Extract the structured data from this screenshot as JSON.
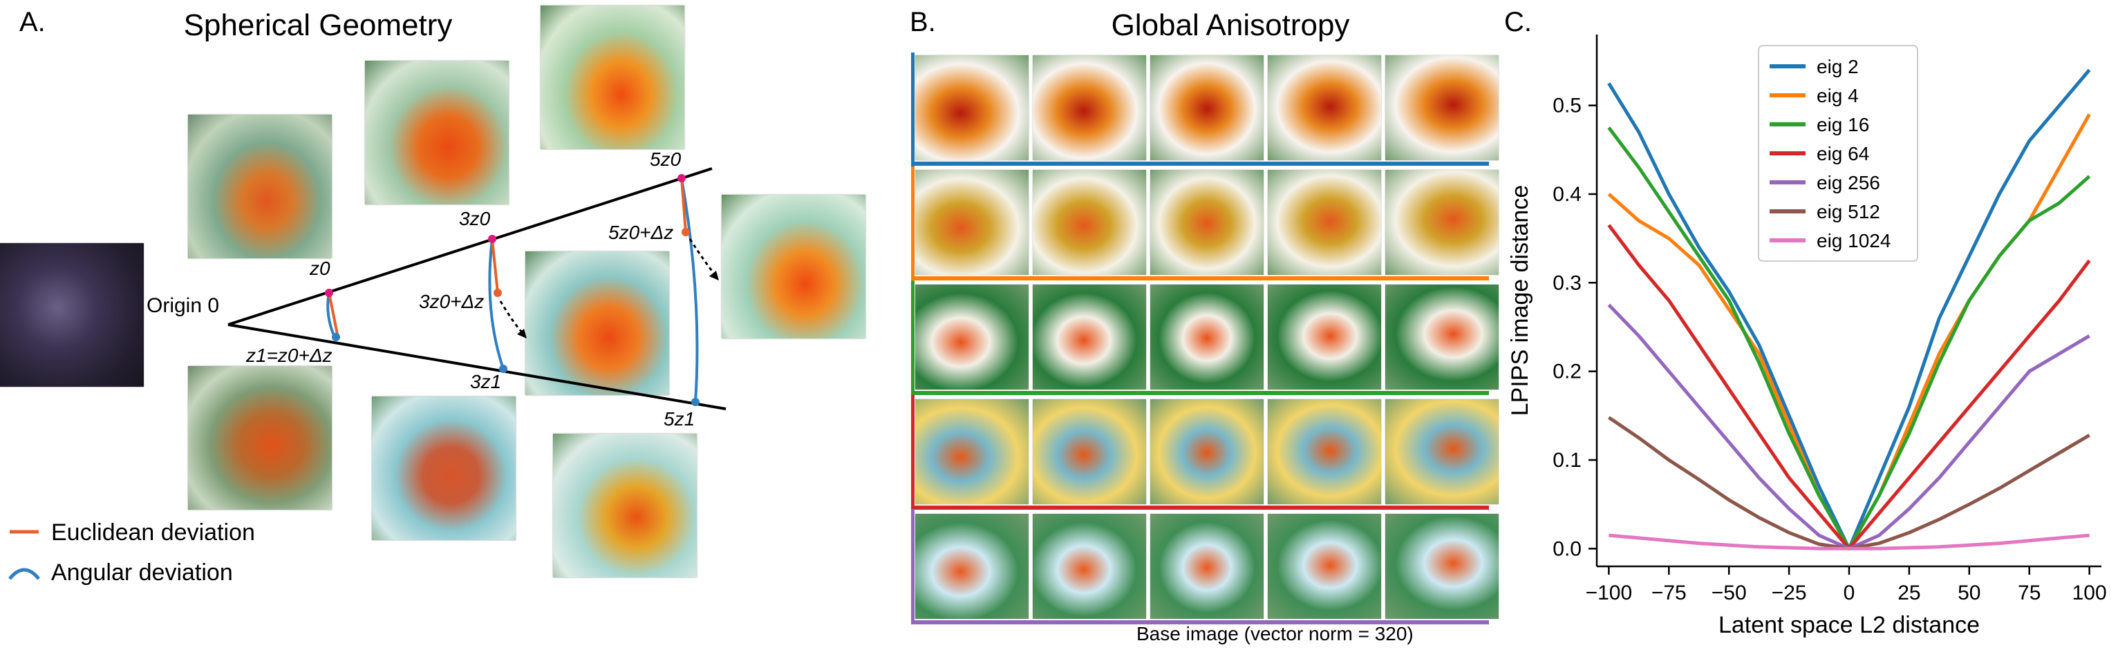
{
  "panel_a": {
    "letter": "A.",
    "title": "Spherical Geometry",
    "labels": {
      "origin": "Origin 0",
      "z0": "z0",
      "z1": "z1=z0+Δz",
      "three_z0": "3z0",
      "three_z0_dz": "3z0+Δz",
      "three_z1": "3z1",
      "five_z0": "5z0",
      "five_z0_dz": "5z0+Δz",
      "five_z1": "5z1"
    },
    "legend": [
      {
        "label": "Euclidean deviation",
        "color": "#e8602c"
      },
      {
        "label": "Angular deviation",
        "color": "#2f7fc1"
      }
    ]
  },
  "panel_b": {
    "letter": "B.",
    "title": "Global Anisotropy",
    "caption": "Base image (vector norm = 320)",
    "row_colors": [
      "#1f77b4",
      "#ff7f0e",
      "#2ca02c",
      "#d62728",
      "#9467bd"
    ]
  },
  "panel_c": {
    "letter": "C.",
    "chart_data": {
      "type": "line",
      "xlabel": "Latent space L2 distance",
      "ylabel": "LPIPS image distance",
      "xlim": [
        -105,
        105
      ],
      "ylim": [
        -0.02,
        0.58
      ],
      "xticks": [
        -100,
        -75,
        -50,
        -25,
        0,
        25,
        50,
        75,
        100
      ],
      "yticks": [
        0.0,
        0.1,
        0.2,
        0.3,
        0.4,
        0.5
      ],
      "grid": false,
      "legend_position": "top-center",
      "x": [
        -100,
        -87.5,
        -75,
        -62.5,
        -50,
        -37.5,
        -25,
        -12.5,
        0,
        12.5,
        25,
        37.5,
        50,
        62.5,
        75,
        87.5,
        100
      ],
      "series": [
        {
          "name": "eig 2",
          "color": "#1f77b4",
          "values": [
            0.525,
            0.47,
            0.4,
            0.34,
            0.29,
            0.23,
            0.15,
            0.07,
            0.0,
            0.08,
            0.16,
            0.26,
            0.33,
            0.4,
            0.46,
            0.5,
            0.54
          ]
        },
        {
          "name": "eig 4",
          "color": "#ff7f0e",
          "values": [
            0.4,
            0.37,
            0.35,
            0.32,
            0.27,
            0.22,
            0.14,
            0.06,
            0.0,
            0.06,
            0.14,
            0.22,
            0.28,
            0.33,
            0.37,
            0.43,
            0.49
          ]
        },
        {
          "name": "eig 16",
          "color": "#2ca02c",
          "values": [
            0.475,
            0.43,
            0.38,
            0.33,
            0.28,
            0.21,
            0.13,
            0.06,
            0.0,
            0.06,
            0.13,
            0.21,
            0.28,
            0.33,
            0.37,
            0.39,
            0.42
          ]
        },
        {
          "name": "eig 64",
          "color": "#d62728",
          "values": [
            0.365,
            0.32,
            0.28,
            0.23,
            0.18,
            0.13,
            0.08,
            0.04,
            0.0,
            0.04,
            0.08,
            0.12,
            0.16,
            0.2,
            0.24,
            0.28,
            0.325
          ]
        },
        {
          "name": "eig 256",
          "color": "#9467bd",
          "values": [
            0.275,
            0.24,
            0.2,
            0.16,
            0.12,
            0.08,
            0.045,
            0.015,
            0.0,
            0.015,
            0.045,
            0.08,
            0.12,
            0.16,
            0.2,
            0.22,
            0.24
          ]
        },
        {
          "name": "eig 512",
          "color": "#8c564b",
          "values": [
            0.148,
            0.125,
            0.1,
            0.078,
            0.055,
            0.035,
            0.018,
            0.005,
            0.0,
            0.006,
            0.018,
            0.033,
            0.05,
            0.068,
            0.088,
            0.108,
            0.128
          ]
        },
        {
          "name": "eig 1024",
          "color": "#e377c2",
          "values": [
            0.015,
            0.012,
            0.009,
            0.006,
            0.004,
            0.002,
            0.001,
            0.0,
            0.0,
            0.0,
            0.001,
            0.002,
            0.004,
            0.006,
            0.009,
            0.012,
            0.015
          ]
        }
      ]
    }
  }
}
